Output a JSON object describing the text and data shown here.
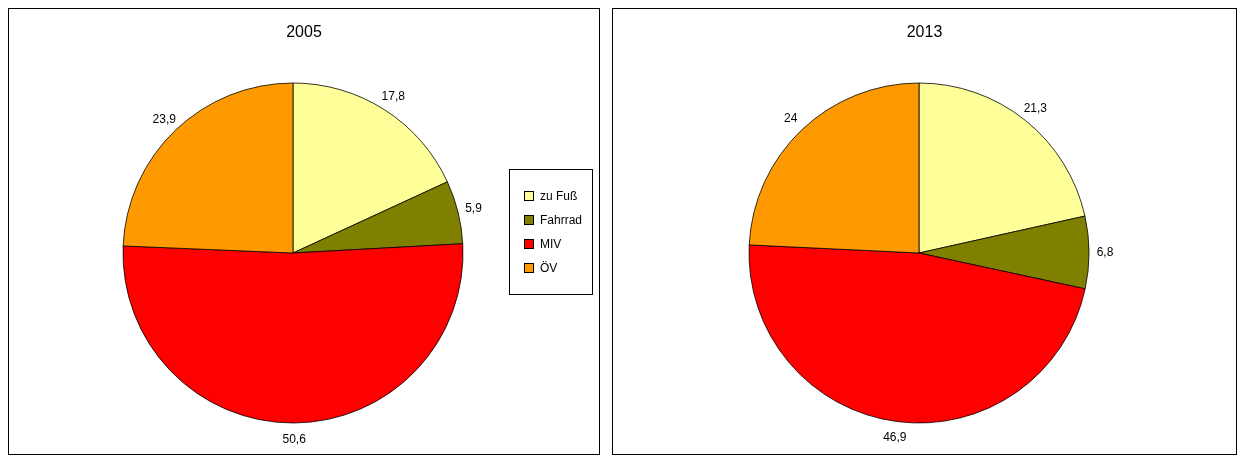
{
  "chart_data": [
    {
      "type": "pie",
      "title": "2005",
      "categories": [
        "zu Fuß",
        "Fahrrad",
        "MIV",
        "ÖV"
      ],
      "values": [
        17.8,
        5.9,
        50.6,
        23.9
      ],
      "value_labels": [
        "17,8",
        "5,9",
        "50,6",
        "23,9"
      ],
      "colors": [
        "#ffff99",
        "#808000",
        "#ff0000",
        "#ff9900"
      ],
      "legend": "right"
    },
    {
      "type": "pie",
      "title": "2013",
      "categories": [
        null,
        null,
        null,
        null
      ],
      "values": [
        21.3,
        6.8,
        46.9,
        24
      ],
      "value_labels": [
        "21,3",
        "6,8",
        "46,9",
        "24"
      ],
      "colors": [
        "#ffff99",
        "#808000",
        "#ff0000",
        "#ff9900"
      ],
      "legend": false
    }
  ]
}
